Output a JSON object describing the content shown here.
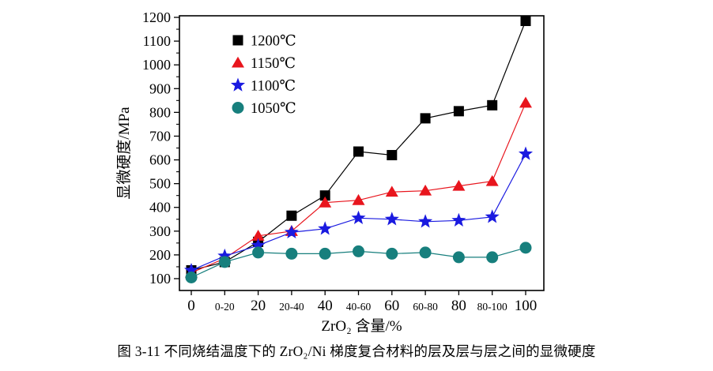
{
  "figure": {
    "caption": "图 3-11  不同烧结温度下的 ZrO₂/Ni 梯度复合材料的层及层与层之间的显微硬度"
  },
  "chart_data": {
    "type": "line",
    "title": "",
    "xlabel": "ZrO₂ 含量/%",
    "ylabel": "显微硬度/MPa",
    "categories": [
      "0",
      "0-20",
      "20",
      "20-40",
      "40",
      "40-60",
      "60",
      "60-80",
      "80",
      "80-100",
      "100"
    ],
    "ylim": [
      50,
      1200
    ],
    "yticks": [
      100,
      200,
      300,
      400,
      500,
      600,
      700,
      800,
      900,
      1000,
      1100,
      1200
    ],
    "yminor_step": 50,
    "grid": false,
    "legend_position": "inside-top-left",
    "series": [
      {
        "name": "1200℃",
        "marker": "square",
        "color": "#000000",
        "values": [
          135,
          170,
          255,
          365,
          450,
          635,
          620,
          775,
          805,
          830,
          1185
        ]
      },
      {
        "name": "1150℃",
        "marker": "triangle",
        "color": "#e8151d",
        "values": [
          125,
          185,
          280,
          300,
          420,
          430,
          465,
          470,
          490,
          510,
          840
        ]
      },
      {
        "name": "1100℃",
        "marker": "star",
        "color": "#1a1ae0",
        "values": [
          135,
          195,
          240,
          295,
          310,
          355,
          350,
          340,
          345,
          360,
          625
        ]
      },
      {
        "name": "1050℃",
        "marker": "circle",
        "color": "#177f7d",
        "values": [
          105,
          170,
          210,
          205,
          205,
          215,
          205,
          210,
          190,
          190,
          230
        ]
      }
    ]
  }
}
